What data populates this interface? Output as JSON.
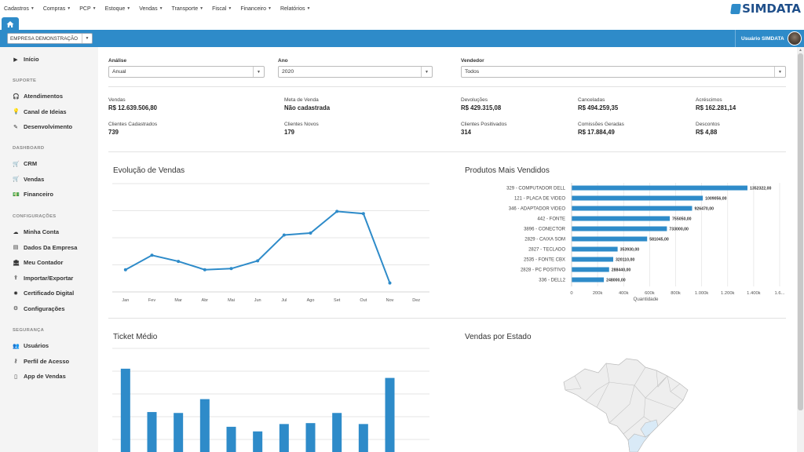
{
  "top_menu": [
    {
      "label": "Cadastros"
    },
    {
      "label": "Compras"
    },
    {
      "label": "PCP"
    },
    {
      "label": "Estoque"
    },
    {
      "label": "Vendas"
    },
    {
      "label": "Transporte"
    },
    {
      "label": "Fiscal"
    },
    {
      "label": "Financeiro"
    },
    {
      "label": "Relatórios"
    }
  ],
  "logo": {
    "text": "SIMDATA",
    "color": "#1f4f8a"
  },
  "header": {
    "company": "EMPRESA DEMONSTRAÇÃO",
    "user": "Usuário SIMDATA",
    "accent": "#2e8bc9"
  },
  "sidebar": {
    "top_item": {
      "label": "Início",
      "icon": "play-icon"
    },
    "sections": [
      {
        "title": "SUPORTE",
        "items": [
          {
            "label": "Atendimentos",
            "icon": "headset-icon"
          },
          {
            "label": "Canal de Ideias",
            "icon": "lightbulb-icon"
          },
          {
            "label": "Desenvolvimento",
            "icon": "pencil-icon"
          }
        ]
      },
      {
        "title": "DASHBOARD",
        "items": [
          {
            "label": "CRM",
            "icon": "cart-icon"
          },
          {
            "label": "Vendas",
            "icon": "cart-icon"
          },
          {
            "label": "Financeiro",
            "icon": "money-icon"
          }
        ]
      },
      {
        "title": "CONFIGURAÇÕES",
        "items": [
          {
            "label": "Minha Conta",
            "icon": "cloud-icon"
          },
          {
            "label": "Dados Da Empresa",
            "icon": "document-icon"
          },
          {
            "label": "Meu Contador",
            "icon": "bank-icon"
          },
          {
            "label": "Importar/Exportar",
            "icon": "upload-icon"
          },
          {
            "label": "Certificado Digital",
            "icon": "certificate-icon"
          },
          {
            "label": "Configurações",
            "icon": "gears-icon"
          }
        ]
      },
      {
        "title": "SEGURANÇA",
        "items": [
          {
            "label": "Usuários",
            "icon": "users-icon"
          },
          {
            "label": "Perfil de Acesso",
            "icon": "key-icon"
          },
          {
            "label": "App de Vendas",
            "icon": "mobile-icon"
          }
        ]
      }
    ]
  },
  "filters": {
    "analise": {
      "label": "Análise",
      "value": "Anual"
    },
    "ano": {
      "label": "Ano",
      "value": "2020"
    },
    "vendedor": {
      "label": "Vendedor",
      "value": "Todos"
    }
  },
  "stats": [
    {
      "label": "Vendas",
      "value": "R$ 12.639.506,80"
    },
    {
      "label": "Meta de Venda",
      "value": "Não cadastrada"
    },
    {
      "label": "Devoluções",
      "value": "R$ 429.315,08"
    },
    {
      "label": "Canceladas",
      "value": "R$ 494.259,35"
    },
    {
      "label": "Acréscimos",
      "value": "R$ 162.281,14"
    },
    {
      "label": "Clientes Cadastrados",
      "value": "739"
    },
    {
      "label": "Clientes Novos",
      "value": "179"
    },
    {
      "label": "Clientes Positivados",
      "value": "314"
    },
    {
      "label": "Comissões Geradas",
      "value": "R$ 17.884,49"
    },
    {
      "label": "Descontos",
      "value": "R$ 4,88"
    }
  ],
  "panels": {
    "evolucao": "Evolução de Vendas",
    "produtos": "Produtos Mais Vendidos",
    "ticket": "Ticket Médio",
    "estado": "Vendas por Estado"
  },
  "chart_data": [
    {
      "type": "line",
      "title": "Evolução de Vendas",
      "categories": [
        "Jan",
        "Fev",
        "Mar",
        "Abr",
        "Mai",
        "Jun",
        "Jul",
        "Ago",
        "Set",
        "Out",
        "Nov",
        "Dez"
      ],
      "values": [
        800,
        1320,
        1100,
        800,
        840,
        1120,
        2050,
        2120,
        2900,
        2820,
        320,
        null
      ],
      "ylim": [
        0,
        3900
      ],
      "grid": true,
      "color": "#2e8bc9"
    },
    {
      "type": "bar",
      "orientation": "horizontal",
      "title": "Produtos Mais Vendidos",
      "categories": [
        "329 - COMPUTADOR DELL",
        "121 - PLACA DE VIDEO",
        "346 - ADAPTADOR VIDEO",
        "442 - FONTE",
        "3896 - CONECTOR",
        "2829 - CAIXA SOM",
        "2827 - TECLADO",
        "2535 - FONTE CBX",
        "2828 - PC POSITIVO",
        "336 - DELL2"
      ],
      "values": [
        1352322,
        1009056,
        926470,
        755050,
        733000,
        581045,
        353930,
        320110,
        288440,
        248000
      ],
      "value_labels": [
        "1352322,00",
        "1009056,00",
        "926470,00",
        "755050,00",
        "733000,00",
        "581045,00",
        "353930,00",
        "320110,00",
        "288440,00",
        "248000,00"
      ],
      "xlabel": "Quantidade",
      "xticks": [
        "0",
        "200k",
        "400k",
        "600k",
        "800k",
        "1.000k",
        "1.200k",
        "1.400k",
        "1.6..."
      ],
      "xlim": [
        0,
        1600000
      ],
      "color": "#2e8bc9"
    },
    {
      "type": "bar",
      "title": "Ticket Médio",
      "values": [
        98,
        51,
        50,
        65,
        35,
        30,
        38,
        39,
        50,
        38,
        88
      ],
      "ylim": [
        0,
        120
      ],
      "grid": true,
      "color": "#2e8bc9"
    }
  ]
}
